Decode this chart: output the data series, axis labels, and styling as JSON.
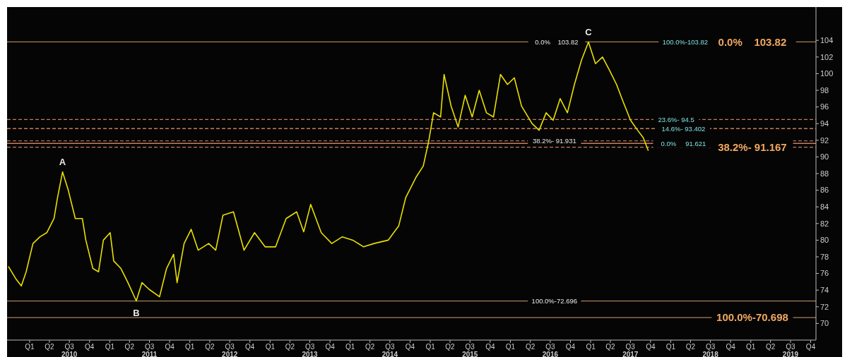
{
  "chart_data": {
    "type": "line",
    "color": "#e8e000",
    "x": [
      "2009-09-27",
      "2009-10-29",
      "2009-11-24",
      "2009-12-16",
      "2010-01-16",
      "2010-02-17",
      "2010-03-20",
      "2010-04-22",
      "2010-05-08",
      "2010-05-31",
      "2010-06-26",
      "2010-07-28",
      "2010-08-29",
      "2010-09-14",
      "2010-10-16",
      "2010-11-11",
      "2010-12-03",
      "2011-01-03",
      "2011-01-19",
      "2011-02-21",
      "2011-03-25",
      "2011-05-02",
      "2011-05-28",
      "2011-06-29",
      "2011-08-16",
      "2011-09-17",
      "2011-10-19",
      "2011-11-04",
      "2011-12-06",
      "2012-01-07",
      "2012-02-08",
      "2012-03-27",
      "2012-04-28",
      "2012-05-31",
      "2012-07-18",
      "2012-09-04",
      "2012-10-22",
      "2012-12-09",
      "2013-01-26",
      "2013-03-15",
      "2013-05-02",
      "2013-06-03",
      "2013-07-05",
      "2013-08-22",
      "2013-10-09",
      "2013-11-26",
      "2014-01-13",
      "2014-03-03",
      "2014-04-20",
      "2014-06-23",
      "2014-08-10",
      "2014-09-11",
      "2014-10-29",
      "2014-11-30",
      "2014-12-25",
      "2015-01-16",
      "2015-02-17",
      "2015-03-05",
      "2015-04-06",
      "2015-05-08",
      "2015-06-09",
      "2015-07-11",
      "2015-08-12",
      "2015-09-14",
      "2015-10-16",
      "2015-11-17",
      "2015-12-19",
      "2016-01-19",
      "2016-02-21",
      "2016-04-09",
      "2016-05-11",
      "2016-06-12",
      "2016-07-14",
      "2016-08-15",
      "2016-09-17",
      "2016-10-19",
      "2016-11-20",
      "2016-12-22",
      "2017-01-23",
      "2017-02-24",
      "2017-03-28",
      "2017-04-29",
      "2017-05-31",
      "2017-07-02",
      "2017-08-03",
      "2017-08-29",
      "2017-09-20"
    ],
    "values": [
      76.8,
      75.4,
      74.5,
      76.2,
      79.6,
      80.4,
      80.9,
      82.6,
      85.1,
      88.2,
      86,
      82.6,
      82.6,
      80,
      76.6,
      76.2,
      80,
      80.9,
      77.5,
      76.6,
      74.9,
      72.7,
      74.9,
      74.1,
      73.2,
      76.6,
      78.3,
      74.9,
      79.6,
      81.3,
      78.8,
      79.6,
      78.8,
      83,
      83.4,
      78.8,
      80.9,
      79.2,
      79.2,
      82.6,
      83.4,
      81,
      84.3,
      80.9,
      79.6,
      80.4,
      80,
      79.2,
      79.6,
      80,
      81.7,
      85.1,
      87.6,
      88.9,
      91.9,
      95.3,
      94.8,
      99.9,
      96.1,
      93.6,
      97.4,
      94.8,
      98,
      95.3,
      94.8,
      99.9,
      98.7,
      99.5,
      96.1,
      94,
      93.2,
      95.3,
      94.4,
      97,
      95.3,
      98.7,
      101.6,
      103.8,
      101.2,
      102,
      100.4,
      98.7,
      96.5,
      94.4,
      93.2,
      92.3,
      90.8
    ],
    "xlim": [
      "2009-09-20",
      "2019-10-25"
    ],
    "xticks": [
      {
        "value": "2010-01",
        "label": "Q1"
      },
      {
        "value": "2010-04",
        "label": "Q2"
      },
      {
        "value": "2010-07",
        "label": "Q3\n2010"
      },
      {
        "value": "2010-10",
        "label": "Q4"
      },
      {
        "value": "2011-01",
        "label": "Q1"
      },
      {
        "value": "2011-04",
        "label": "Q2"
      },
      {
        "value": "2011-07",
        "label": "Q3\n2011"
      },
      {
        "value": "2011-10",
        "label": "Q4"
      },
      {
        "value": "2012-01",
        "label": "Q1"
      },
      {
        "value": "2012-04",
        "label": "Q2"
      },
      {
        "value": "2012-07",
        "label": "Q3\n2012"
      },
      {
        "value": "2012-10",
        "label": "Q4"
      },
      {
        "value": "2013-01",
        "label": "Q1"
      },
      {
        "value": "2013-04",
        "label": "Q2"
      },
      {
        "value": "2013-07",
        "label": "Q3\n2013"
      },
      {
        "value": "2013-10",
        "label": "Q4"
      },
      {
        "value": "2014-01",
        "label": "Q1"
      },
      {
        "value": "2014-04",
        "label": "Q2"
      },
      {
        "value": "2014-07",
        "label": "Q3\n2014"
      },
      {
        "value": "2014-10",
        "label": "Q4"
      },
      {
        "value": "2015-01",
        "label": "Q1"
      },
      {
        "value": "2015-04",
        "label": "Q2"
      },
      {
        "value": "2015-07",
        "label": "Q3\n2015"
      },
      {
        "value": "2015-10",
        "label": "Q4"
      },
      {
        "value": "2016-01",
        "label": "Q1"
      },
      {
        "value": "2016-04",
        "label": "Q2"
      },
      {
        "value": "2016-07",
        "label": "Q3\n2016"
      },
      {
        "value": "2016-10",
        "label": "Q4"
      },
      {
        "value": "2017-01",
        "label": "Q1"
      },
      {
        "value": "2017-04",
        "label": "Q2"
      },
      {
        "value": "2017-07",
        "label": "Q3\n2017"
      },
      {
        "value": "2017-10",
        "label": "Q4"
      },
      {
        "value": "2018-01",
        "label": "Q1"
      },
      {
        "value": "2018-04",
        "label": "Q2"
      },
      {
        "value": "2018-07",
        "label": "Q3\n2018"
      },
      {
        "value": "2018-10",
        "label": "Q4"
      },
      {
        "value": "2019-01",
        "label": "Q1"
      },
      {
        "value": "2019-04",
        "label": "Q2"
      },
      {
        "value": "2019-07",
        "label": "Q3\n2019"
      },
      {
        "value": "2019-10",
        "label": "Q4"
      }
    ],
    "ylim": [
      68,
      108
    ],
    "yticks": [
      70,
      72,
      74,
      76,
      78,
      80,
      82,
      84,
      86,
      88,
      90,
      92,
      94,
      96,
      98,
      100,
      102,
      104
    ],
    "ref_lines": [
      {
        "axis": "y",
        "value": 103.82,
        "color": "#a8805a",
        "line_style": "solid"
      },
      {
        "axis": "y",
        "value": 94.5,
        "color": "#c87a5a",
        "line_style": "dashed"
      },
      {
        "axis": "y",
        "value": 93.402,
        "color": "#c87a5a",
        "line_style": "dashed"
      },
      {
        "axis": "y",
        "value": 91.931,
        "color": "#b07060",
        "line_style": "dashed"
      },
      {
        "axis": "y",
        "value": 91.621,
        "color": "#c08060",
        "line_style": "solid"
      },
      {
        "axis": "y",
        "value": 91.167,
        "color": "#c87a5a",
        "line_style": "dashed"
      },
      {
        "axis": "y",
        "value": 72.696,
        "color": "#a8805a",
        "line_style": "solid"
      },
      {
        "axis": "y",
        "value": 70.698,
        "color": "#a8805a",
        "line_style": "solid"
      }
    ],
    "annotations": [
      {
        "text": "A",
        "x": "2010-05-31",
        "y": 88.2
      },
      {
        "text": "B",
        "x": "2011-05-02",
        "y": 72.7
      },
      {
        "text": "C",
        "x": "2016-12-22",
        "y": 103.8
      },
      {
        "text": "0.0%    103.82",
        "x": "2019-01-08",
        "y": 103.82
      },
      {
        "text": "38.2%- 91.167",
        "x": "2019-01-08",
        "y": 91.167
      },
      {
        "text": "100.0%-70.698",
        "x": "2019-01-08",
        "y": 70.698
      },
      {
        "text": "0.0%    103.82",
        "x": "2016-07-30",
        "y": 103.82
      },
      {
        "text": "100.0%-103.82",
        "x": "2018-03-08",
        "y": 103.82
      },
      {
        "text": "23.6%- 94.5",
        "x": "2018-01-26",
        "y": 94.5
      },
      {
        "text": "14.6%- 93.402",
        "x": "2018-02-28",
        "y": 93.402
      },
      {
        "text": "38.2%- 91.931",
        "x": "2016-07-20",
        "y": 91.931
      },
      {
        "text": "0.0%     91.621",
        "x": "2018-02-28",
        "y": 91.621
      },
      {
        "text": "100.0%-72.696",
        "x": "2016-07-20",
        "y": 72.696
      }
    ]
  }
}
